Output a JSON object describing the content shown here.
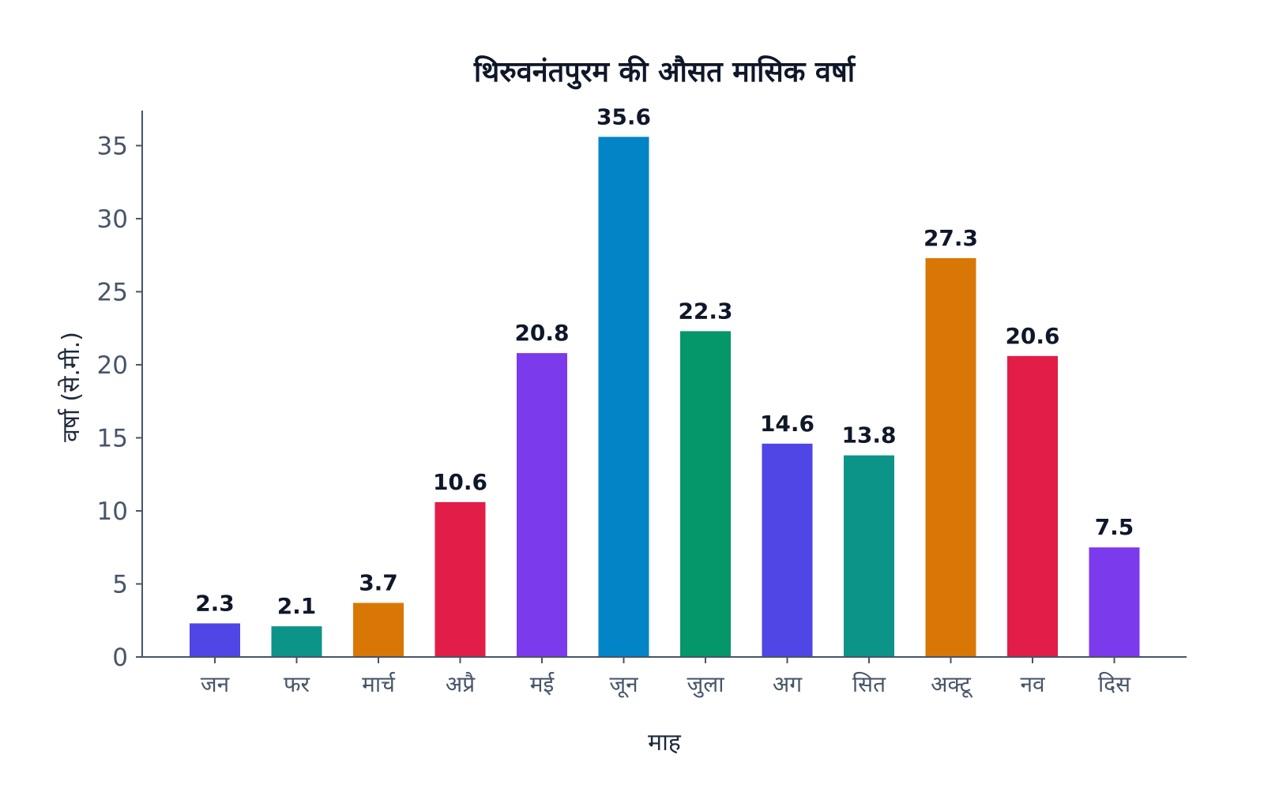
{
  "chart_data": {
    "type": "bar",
    "title": "थिरुवनंतपुरम की औसत मासिक वर्षा",
    "xlabel": "माह",
    "ylabel": "वर्षा (से.मी.)",
    "categories": [
      "जन",
      "फर",
      "मार्च",
      "अप्रै",
      "मई",
      "जून",
      "जुला",
      "अग",
      "सित",
      "अक्टू",
      "नव",
      "दिस"
    ],
    "values": [
      2.3,
      2.1,
      3.7,
      10.6,
      20.8,
      35.6,
      22.3,
      14.6,
      13.8,
      27.3,
      20.6,
      7.5
    ],
    "value_labels": [
      "2.3",
      "2.1",
      "3.7",
      "10.6",
      "20.8",
      "35.6",
      "22.3",
      "14.6",
      "13.8",
      "27.3",
      "20.6",
      "7.5"
    ],
    "colors": [
      "#4f46e5",
      "#0d9488",
      "#d97706",
      "#e11d48",
      "#7c3aed",
      "#0284c7",
      "#059669",
      "#4f46e5",
      "#0d9488",
      "#d97706",
      "#e11d48",
      "#7c3aed"
    ],
    "ylim": [
      0,
      37.4
    ],
    "yticks": [
      "0",
      "5",
      "10",
      "15",
      "20",
      "25",
      "30",
      "35"
    ],
    "grid": false,
    "legend": "none"
  }
}
